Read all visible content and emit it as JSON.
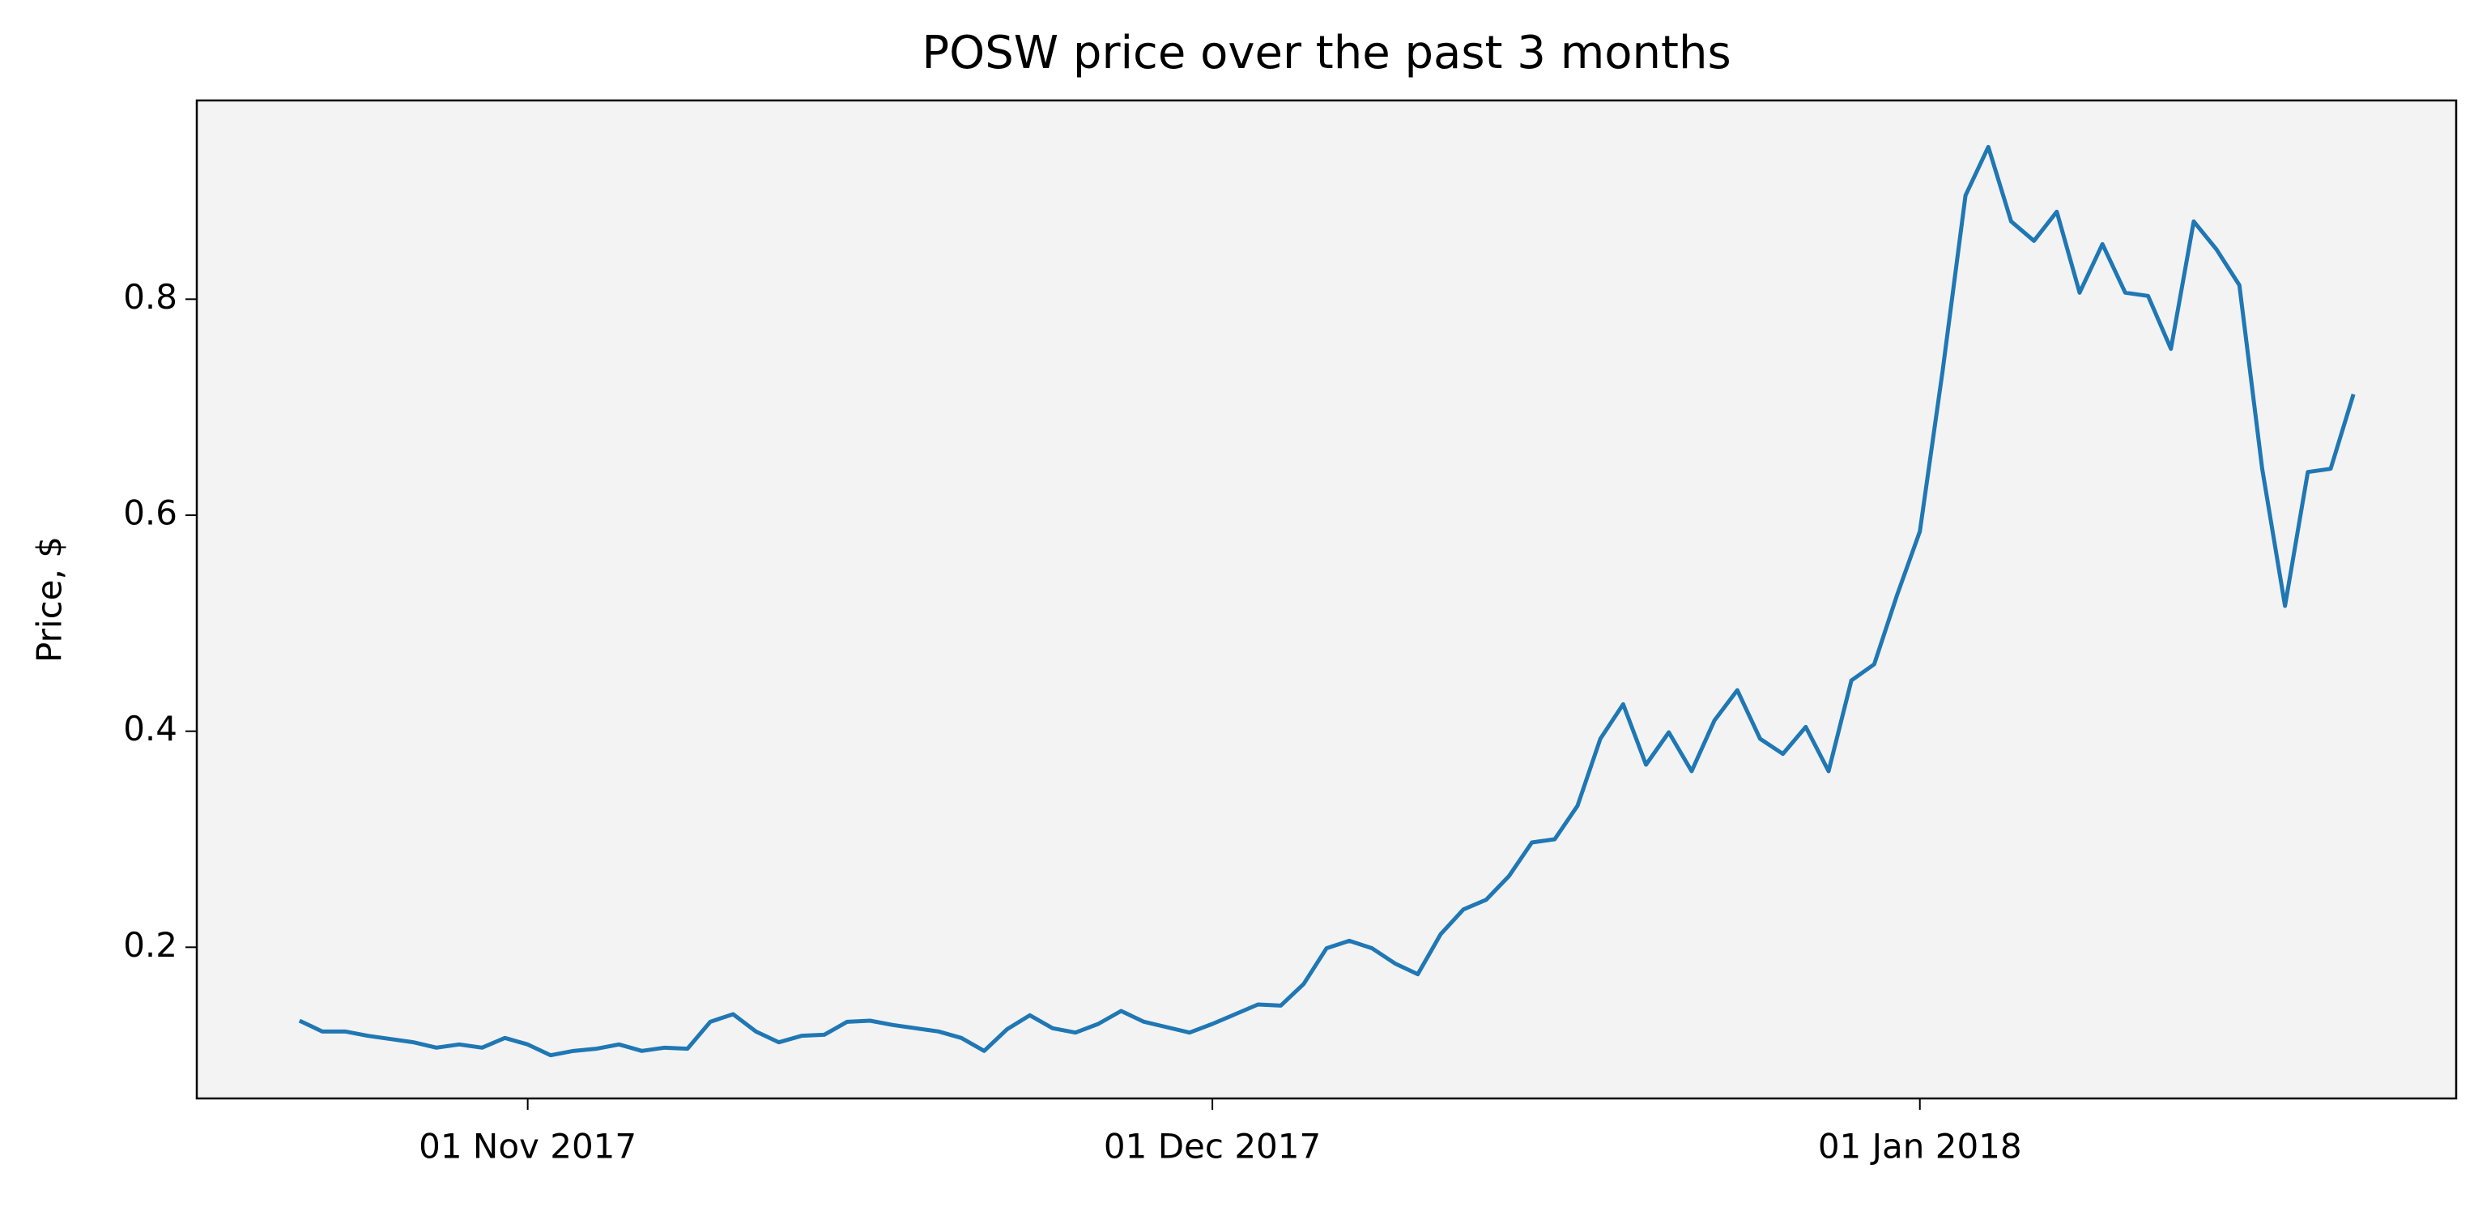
{
  "chart_data": {
    "type": "line",
    "title": "POSW price over the past 3 months",
    "y_label": "Price, $",
    "x": [
      "2017-10-22",
      "2017-10-23",
      "2017-10-24",
      "2017-10-25",
      "2017-10-26",
      "2017-10-27",
      "2017-10-28",
      "2017-10-29",
      "2017-10-30",
      "2017-10-31",
      "2017-11-01",
      "2017-11-02",
      "2017-11-03",
      "2017-11-04",
      "2017-11-05",
      "2017-11-06",
      "2017-11-07",
      "2017-11-08",
      "2017-11-09",
      "2017-11-10",
      "2017-11-11",
      "2017-11-12",
      "2017-11-13",
      "2017-11-14",
      "2017-11-15",
      "2017-11-16",
      "2017-11-17",
      "2017-11-18",
      "2017-11-19",
      "2017-11-20",
      "2017-11-21",
      "2017-11-22",
      "2017-11-23",
      "2017-11-24",
      "2017-11-25",
      "2017-11-26",
      "2017-11-27",
      "2017-11-28",
      "2017-11-29",
      "2017-11-30",
      "2017-12-01",
      "2017-12-02",
      "2017-12-03",
      "2017-12-04",
      "2017-12-05",
      "2017-12-06",
      "2017-12-07",
      "2017-12-08",
      "2017-12-09",
      "2017-12-10",
      "2017-12-11",
      "2017-12-12",
      "2017-12-13",
      "2017-12-14",
      "2017-12-15",
      "2017-12-16",
      "2017-12-17",
      "2017-12-18",
      "2017-12-19",
      "2017-12-20",
      "2017-12-21",
      "2017-12-22",
      "2017-12-23",
      "2017-12-24",
      "2017-12-25",
      "2017-12-26",
      "2017-12-27",
      "2017-12-28",
      "2017-12-29",
      "2017-12-30",
      "2017-12-31",
      "2018-01-01",
      "2018-01-02",
      "2018-01-03",
      "2018-01-04",
      "2018-01-05",
      "2018-01-06",
      "2018-01-07",
      "2018-01-08",
      "2018-01-09",
      "2018-01-10",
      "2018-01-11",
      "2018-01-12",
      "2018-01-13",
      "2018-01-14",
      "2018-01-15",
      "2018-01-16",
      "2018-01-17",
      "2018-01-18",
      "2018-01-19",
      "2018-01-20"
    ],
    "series": [
      {
        "color": "#1f77b4",
        "values": [
          0.132,
          0.122,
          0.122,
          0.118,
          0.115,
          0.112,
          0.107,
          0.11,
          0.107,
          0.116,
          0.11,
          0.1,
          0.104,
          0.106,
          0.11,
          0.104,
          0.107,
          0.106,
          0.131,
          0.138,
          0.122,
          0.112,
          0.118,
          0.119,
          0.131,
          0.132,
          0.128,
          0.125,
          0.122,
          0.116,
          0.104,
          0.124,
          0.137,
          0.125,
          0.121,
          0.129,
          0.141,
          0.131,
          0.126,
          0.121,
          0.129,
          0.138,
          0.147,
          0.146,
          0.166,
          0.199,
          0.206,
          0.199,
          0.185,
          0.175,
          0.212,
          0.235,
          0.244,
          0.266,
          0.297,
          0.3,
          0.331,
          0.393,
          0.425,
          0.369,
          0.399,
          0.363,
          0.41,
          0.438,
          0.393,
          0.379,
          0.404,
          0.363,
          0.447,
          0.462,
          0.526,
          0.585,
          0.734,
          0.896,
          0.941,
          0.872,
          0.854,
          0.881,
          0.806,
          0.851,
          0.806,
          0.803,
          0.754,
          0.872,
          0.846,
          0.813,
          0.643,
          0.516,
          0.64,
          0.643,
          0.712
        ]
      }
    ],
    "xlim": [
      "2017-10-17T12:00:00Z",
      "2018-01-24T12:00:00Z"
    ],
    "xticks": [
      {
        "value": "2017-11-01",
        "label": "01 Nov 2017"
      },
      {
        "value": "2017-12-01",
        "label": "01 Dec 2017"
      },
      {
        "value": "2018-01-01",
        "label": "01 Jan 2018"
      }
    ],
    "ylim": [
      0.06,
      0.984
    ],
    "yticks": [
      0.2,
      0.4,
      0.6,
      0.8
    ],
    "background": "#f3f3f3"
  }
}
